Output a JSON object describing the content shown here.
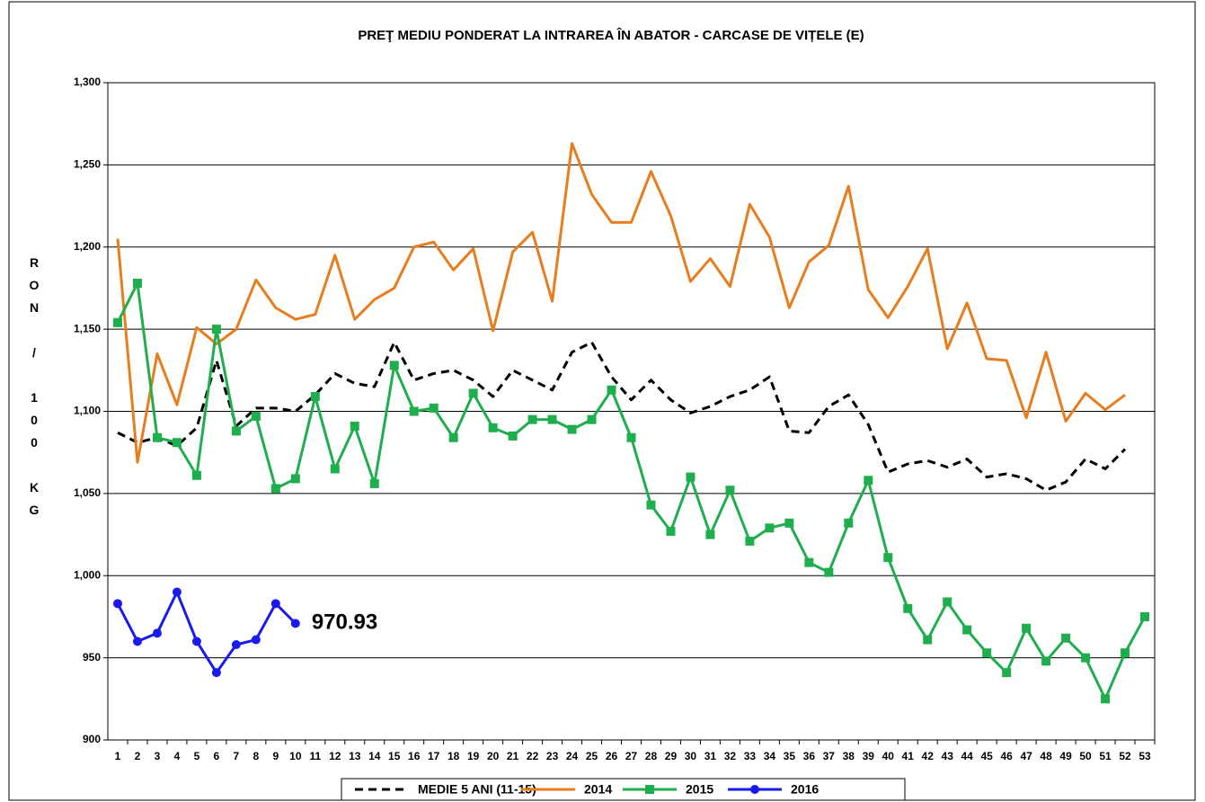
{
  "chart_data": {
    "type": "line",
    "title": "PREŢ MEDIU PONDERAT LA INTRAREA ÎN ABATOR - CARCASE DE VIȚELE (E)",
    "y_label": "RON / 100 KG",
    "categories": [
      1,
      2,
      3,
      4,
      5,
      6,
      7,
      8,
      9,
      10,
      11,
      12,
      13,
      14,
      15,
      16,
      17,
      18,
      19,
      20,
      21,
      22,
      23,
      24,
      25,
      26,
      27,
      28,
      29,
      30,
      31,
      32,
      33,
      34,
      35,
      36,
      37,
      38,
      39,
      40,
      41,
      42,
      43,
      44,
      45,
      46,
      47,
      48,
      49,
      50,
      51,
      52,
      53
    ],
    "ylim": [
      900,
      1300
    ],
    "yticks": [
      900,
      950,
      {
        "value": 1000,
        "label": "1,000"
      },
      {
        "value": 1050,
        "label": "1,050"
      },
      {
        "value": 1100,
        "label": "1,100"
      },
      {
        "value": 1150,
        "label": "1,150"
      },
      {
        "value": 1200,
        "label": "1,200"
      },
      {
        "value": 1250,
        "label": "1,250"
      },
      {
        "value": 1300,
        "label": "1,300"
      }
    ],
    "grid": true,
    "legend": "bottom",
    "series": [
      {
        "name": "MEDIE 5 ANI (11-15)",
        "color": "#000000",
        "dash": true,
        "values": [
          1087,
          1081,
          1084,
          1079,
          1090,
          1131,
          1091,
          1102,
          1102,
          1100,
          1110,
          1123,
          1117,
          1115,
          1142,
          1119,
          1123,
          1125,
          1119,
          1109,
          1125,
          1119,
          1113,
          1136,
          1142,
          1121,
          1107,
          1119,
          1107,
          1099,
          1103,
          1109,
          1113,
          1121,
          1088,
          1087,
          1103,
          1110,
          1092,
          1063,
          1068,
          1070,
          1066,
          1071,
          1060,
          1062,
          1059,
          1052,
          1057,
          1071,
          1065,
          1077,
          null
        ]
      },
      {
        "name": "2014",
        "color": "#e87d1e",
        "values": [
          1205,
          1069,
          1135,
          1104,
          1151,
          1141,
          1150,
          1180,
          1163,
          1156,
          1159,
          1195,
          1156,
          1168,
          1175,
          1200,
          1203,
          1186,
          1199,
          1149,
          1197,
          1209,
          1167,
          1263,
          1232,
          1215,
          1215,
          1246,
          1219,
          1179,
          1193,
          1176,
          1226,
          1206,
          1163,
          1191,
          1201,
          1237,
          1174,
          1157,
          1176,
          1199,
          1138,
          1166,
          1132,
          1131,
          1096,
          1136,
          1094,
          1111,
          1101,
          1110,
          null
        ]
      },
      {
        "name": "2015",
        "color": "#1fae4e",
        "marker": "square",
        "values": [
          1154,
          1178,
          1084,
          1081,
          1061,
          1150,
          1088,
          1097,
          1053,
          1059,
          1109,
          1065,
          1091,
          1056,
          1128,
          1100,
          1102,
          1084,
          1111,
          1090,
          1085,
          1095,
          1095,
          1089,
          1095,
          1113,
          1084,
          1043,
          1027,
          1060,
          1025,
          1052,
          1021,
          1029,
          1032,
          1008,
          1002,
          1032,
          1058,
          1011,
          980,
          961,
          984,
          967,
          953,
          941,
          968,
          948,
          962,
          950,
          925,
          953,
          975
        ]
      },
      {
        "name": "2016",
        "color": "#1a1aee",
        "marker": "circle",
        "values": [
          983,
          960,
          965,
          990,
          960,
          941,
          958,
          961,
          983,
          970.93,
          null,
          null,
          null,
          null,
          null,
          null,
          null,
          null,
          null,
          null,
          null,
          null,
          null,
          null,
          null,
          null,
          null,
          null,
          null,
          null,
          null,
          null,
          null,
          null,
          null,
          null,
          null,
          null,
          null,
          null,
          null,
          null,
          null,
          null,
          null,
          null,
          null,
          null,
          null,
          null,
          null,
          null,
          null
        ]
      }
    ],
    "annotation": {
      "series": 3,
      "index": 9
    }
  }
}
